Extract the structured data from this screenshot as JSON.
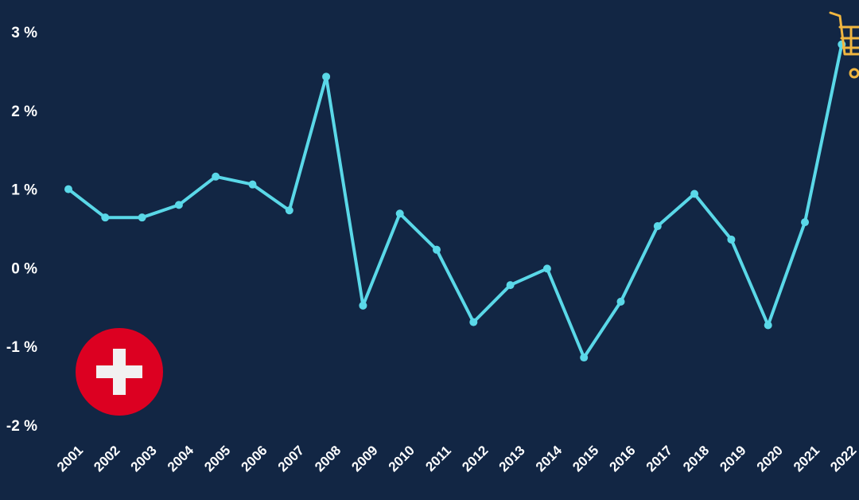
{
  "chart_data": {
    "type": "line",
    "categories": [
      "2001",
      "2002",
      "2003",
      "2004",
      "2005",
      "2006",
      "2007",
      "2008",
      "2009",
      "2010",
      "2011",
      "2012",
      "2013",
      "2014",
      "2015",
      "2016",
      "2017",
      "2018",
      "2019",
      "2020",
      "2021",
      "2022"
    ],
    "series": [
      {
        "values": [
          1.0,
          0.64,
          0.64,
          0.8,
          1.16,
          1.06,
          0.73,
          2.43,
          -0.48,
          0.69,
          0.23,
          -0.69,
          -0.22,
          -0.01,
          -1.14,
          -0.43,
          0.53,
          0.94,
          0.36,
          -0.73,
          0.58,
          2.84
        ],
        "color": "#5ad8e8"
      }
    ],
    "yticks": [
      "3 %",
      "2 %",
      "1 %",
      "0 %",
      "-1 %",
      "-2 %"
    ],
    "ytick_values": [
      3,
      2,
      1,
      0,
      -1,
      -2
    ],
    "ylim": [
      -2,
      3
    ],
    "grid": false,
    "title": "",
    "xlabel": "",
    "ylabel": ""
  },
  "decor": {
    "flag_icon": "swiss-flag-icon",
    "cart_icon": "shopping-cart-icon",
    "flag_color": "#dc0021",
    "cart_color": "#f0b640",
    "background": "#122644"
  }
}
